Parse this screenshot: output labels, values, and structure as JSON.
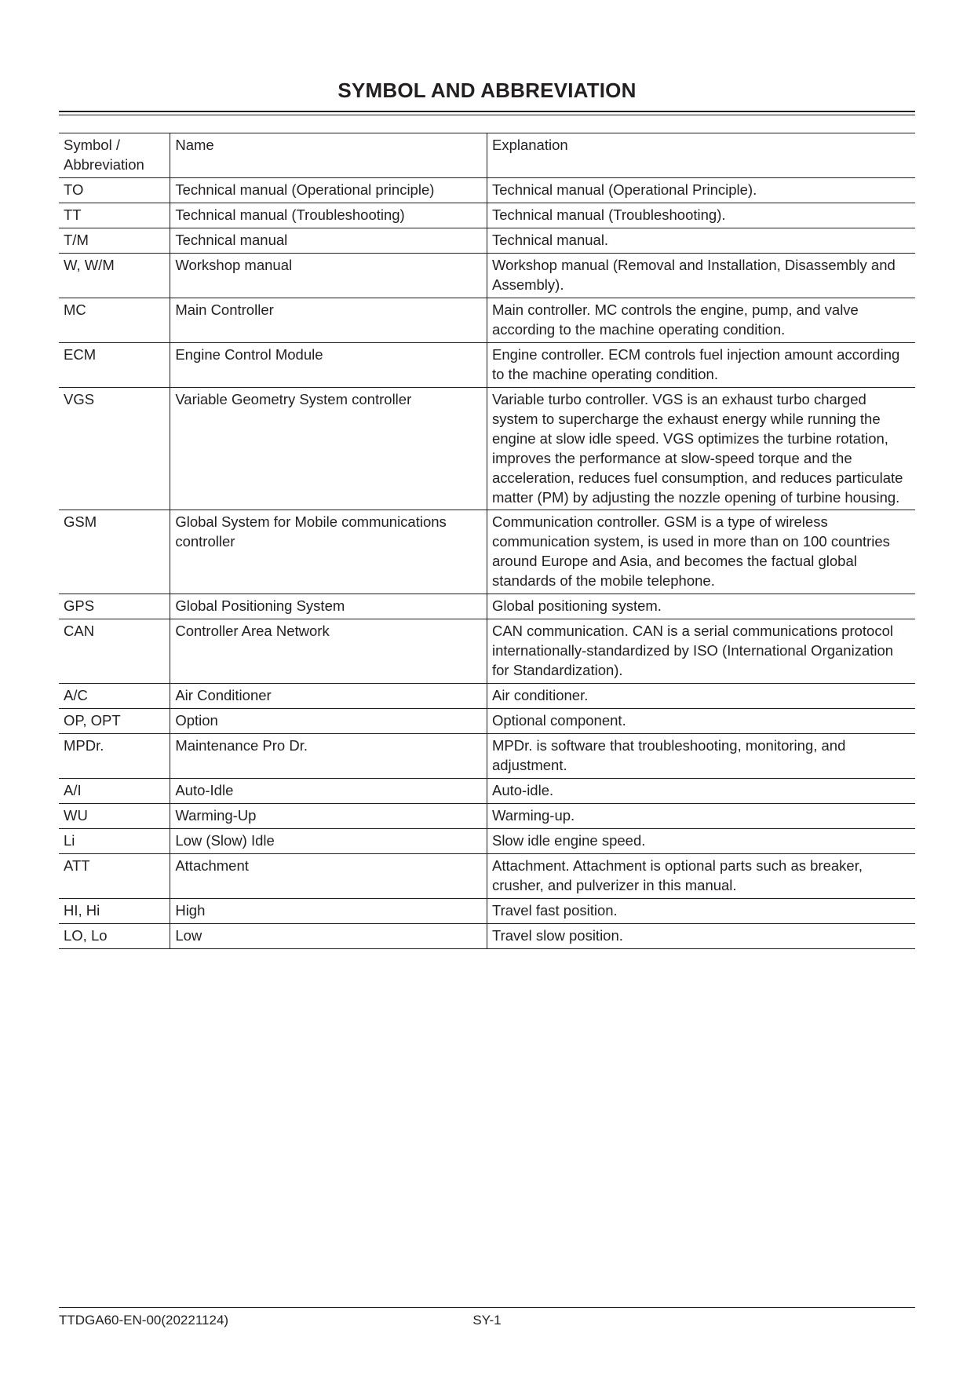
{
  "title": "SYMBOL AND ABBREVIATION",
  "columns": [
    "Symbol / Abbreviation",
    "Name",
    "Explanation"
  ],
  "rows": [
    {
      "sym": "TO",
      "name": "Technical manual (Operational principle)",
      "expl": "Technical manual (Operational Principle)."
    },
    {
      "sym": "TT",
      "name": "Technical manual (Troubleshooting)",
      "expl": "Technical manual (Troubleshooting)."
    },
    {
      "sym": "T/M",
      "name": "Technical manual",
      "expl": "Technical manual."
    },
    {
      "sym": "W, W/M",
      "name": "Workshop manual",
      "expl": "Workshop manual (Removal and Installation, Disassembly and Assembly)."
    },
    {
      "sym": "MC",
      "name": "Main Controller",
      "expl": "Main controller. MC controls the engine, pump, and valve according to the machine operating condition."
    },
    {
      "sym": "ECM",
      "name": "Engine Control Module",
      "expl": "Engine controller. ECM controls fuel injection amount according to the machine operating condition."
    },
    {
      "sym": "VGS",
      "name": "Variable Geometry System controller",
      "expl": "Variable turbo controller. VGS is an exhaust turbo charged system to supercharge the exhaust energy while running the engine at slow idle speed. VGS optimizes the turbine rotation, improves the performance at slow-speed torque and the acceleration, reduces fuel consumption, and reduces particulate matter (PM) by adjusting the nozzle opening of turbine housing."
    },
    {
      "sym": "GSM",
      "name": "Global System for Mobile communications controller",
      "expl": "Communication controller. GSM is a type of wireless communication system, is used in more than on 100 countries around Europe and Asia, and becomes the factual global standards of the mobile telephone."
    },
    {
      "sym": "GPS",
      "name": "Global Positioning System",
      "expl": "Global positioning system."
    },
    {
      "sym": "CAN",
      "name": "Controller Area Network",
      "expl": "CAN communication. CAN is a serial communications protocol internationally-standardized by ISO (International Organization for Standardization)."
    },
    {
      "sym": "A/C",
      "name": "Air Conditioner",
      "expl": "Air conditioner."
    },
    {
      "sym": "OP, OPT",
      "name": "Option",
      "expl": "Optional component."
    },
    {
      "sym": "MPDr.",
      "name": "Maintenance Pro Dr.",
      "expl": "MPDr. is software that troubleshooting, monitoring, and adjustment."
    },
    {
      "sym": "A/I",
      "name": "Auto-Idle",
      "expl": "Auto-idle."
    },
    {
      "sym": "WU",
      "name": "Warming-Up",
      "expl": "Warming-up."
    },
    {
      "sym": "Li",
      "name": "Low (Slow) Idle",
      "expl": "Slow idle engine speed."
    },
    {
      "sym": "ATT",
      "name": "Attachment",
      "expl": "Attachment. Attachment is optional parts such as breaker, crusher, and pulverizer in this manual."
    },
    {
      "sym": "HI, Hi",
      "name": "High",
      "expl": "Travel fast position."
    },
    {
      "sym": "LO, Lo",
      "name": "Low",
      "expl": "Travel slow position."
    }
  ],
  "footer": {
    "left": "TTDGA60-EN-00(20221124)",
    "center": "SY-1"
  }
}
